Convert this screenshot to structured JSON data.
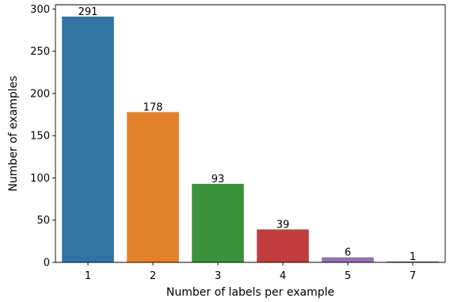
{
  "chart_data": {
    "type": "bar",
    "categories": [
      "1",
      "2",
      "3",
      "4",
      "5",
      "7"
    ],
    "values": [
      291,
      178,
      93,
      39,
      6,
      1
    ],
    "data_labels": [
      "291",
      "178",
      "93",
      "39",
      "6",
      "1"
    ],
    "colors": [
      "#3274a1",
      "#e1812c",
      "#3a923a",
      "#c03d3e",
      "#9372b2",
      "#845b53"
    ],
    "xlabel": "Number of labels per example",
    "ylabel": "Number of examples",
    "ylim": [
      0,
      305
    ],
    "yticks": [
      0,
      50,
      100,
      150,
      200,
      250,
      300
    ],
    "ytick_labels": [
      "0",
      "50",
      "100",
      "150",
      "200",
      "250",
      "300"
    ],
    "grid": false,
    "legend": "none"
  }
}
